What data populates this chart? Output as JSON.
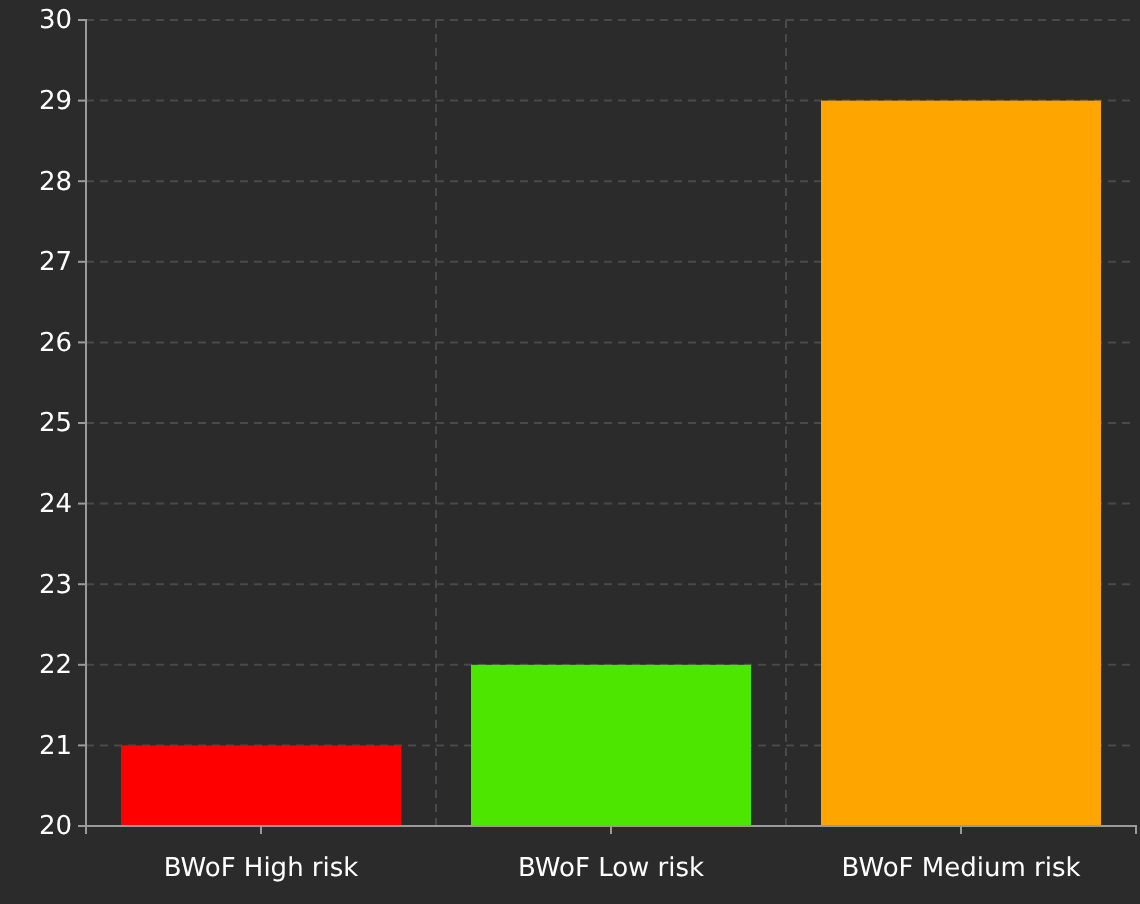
{
  "chart_data": {
    "type": "bar",
    "categories": [
      "BWoF High risk",
      "BWoF Low risk",
      "BWoF Medium risk"
    ],
    "values": [
      21,
      22,
      29
    ],
    "colors": [
      "#ff0000",
      "#4ce600",
      "#ffa500"
    ],
    "ylim": [
      20,
      30
    ],
    "yticks": [
      20,
      21,
      22,
      23,
      24,
      25,
      26,
      27,
      28,
      29,
      30
    ],
    "grid": true
  }
}
